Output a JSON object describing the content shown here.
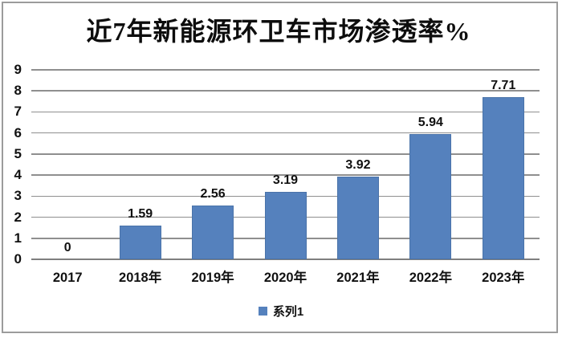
{
  "title": "近7年新能源环卫车市场渗透率%",
  "legend": {
    "label": "系列1"
  },
  "colors": {
    "bar": "#5581BD",
    "bar_border": "#4a73a9",
    "gridline": "#8f8f8f",
    "frame_border": "#9c9c9c",
    "text": "#111111"
  },
  "chart_data": {
    "type": "bar",
    "title": "近7年新能源环卫车市场渗透率%",
    "categories": [
      "2017",
      "2018年",
      "2019年",
      "2020年",
      "2021年",
      "2022年",
      "2023年"
    ],
    "series": [
      {
        "name": "系列1",
        "values": [
          0,
          1.59,
          2.56,
          3.19,
          3.92,
          5.94,
          7.71
        ],
        "data_labels": [
          "0",
          "1.59",
          "2.56",
          "3.19",
          "3.92",
          "5.94",
          "7.71"
        ]
      }
    ],
    "xlabel": "",
    "ylabel": "",
    "ylim": [
      0,
      9
    ],
    "ytick_step": 1,
    "yticks": [
      "0",
      "1",
      "2",
      "3",
      "4",
      "5",
      "6",
      "7",
      "8",
      "9"
    ],
    "grid": true,
    "legend_position": "bottom"
  }
}
